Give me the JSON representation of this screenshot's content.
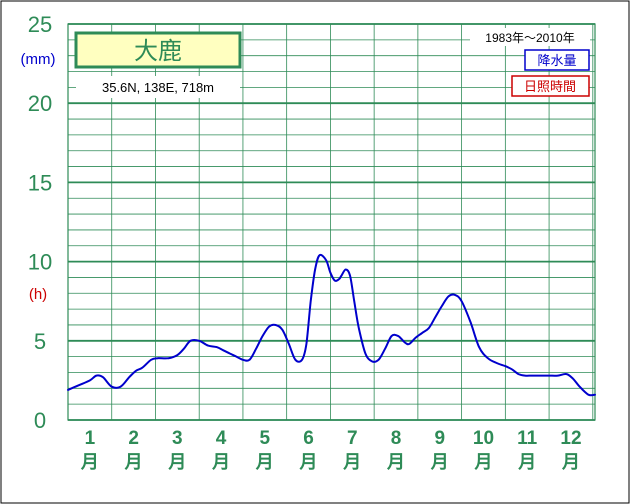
{
  "colors": {
    "frame": "#000000",
    "grid": "#2e8b57",
    "axis_text": "#2e8b57",
    "precip": "#0000cc",
    "sunshine": "#cc0000",
    "station_box_fill": "#ffffc0",
    "station_box_border": "#2e8b57"
  },
  "chart_data": {
    "type": "line",
    "station": "大鹿",
    "location": "35.6N,  138E,  718m",
    "period": "1983年～2010年",
    "legend": [
      {
        "label": "降水量",
        "color": "#0000cc"
      },
      {
        "label": "日照時間",
        "color": "#cc0000"
      }
    ],
    "y_unit_mm": "(mm)",
    "y_unit_h": "(h)",
    "ylim": [
      0,
      25
    ],
    "y_ticks": [
      {
        "value": 0,
        "label": "0"
      },
      {
        "value": 5,
        "label": "5"
      },
      {
        "value": 10,
        "label": "10"
      },
      {
        "value": 15,
        "label": "15"
      },
      {
        "value": 20,
        "label": "20"
      },
      {
        "value": 25,
        "label": "25"
      }
    ],
    "x_ticks": [
      {
        "num": "1",
        "kanji": "月"
      },
      {
        "num": "2",
        "kanji": "月"
      },
      {
        "num": "3",
        "kanji": "月"
      },
      {
        "num": "4",
        "kanji": "月"
      },
      {
        "num": "5",
        "kanji": "月"
      },
      {
        "num": "6",
        "kanji": "月"
      },
      {
        "num": "7",
        "kanji": "月"
      },
      {
        "num": "8",
        "kanji": "月"
      },
      {
        "num": "9",
        "kanji": "月"
      },
      {
        "num": "10",
        "kanji": "月"
      },
      {
        "num": "11",
        "kanji": "月"
      },
      {
        "num": "12",
        "kanji": "月"
      }
    ],
    "x_range": [
      0.5,
      12.55
    ],
    "series": [
      {
        "name": "降水量",
        "color": "#0000cc",
        "x": [
          0.5,
          0.75,
          1.0,
          1.15,
          1.3,
          1.5,
          1.7,
          1.9,
          2.05,
          2.2,
          2.4,
          2.55,
          2.8,
          3.0,
          3.15,
          3.3,
          3.5,
          3.7,
          3.9,
          4.05,
          4.2,
          4.35,
          4.5,
          4.65,
          4.8,
          4.95,
          5.1,
          5.25,
          5.4,
          5.55,
          5.7,
          5.85,
          5.95,
          6.05,
          6.15,
          6.25,
          6.4,
          6.5,
          6.6,
          6.7,
          6.75,
          6.85,
          6.95,
          7.05,
          7.15,
          7.3,
          7.45,
          7.6,
          7.75,
          7.9,
          8.05,
          8.2,
          8.3,
          8.45,
          8.6,
          8.75,
          8.9,
          9.05,
          9.2,
          9.35,
          9.5,
          9.7,
          9.9,
          10.1,
          10.3,
          10.5,
          10.65,
          10.8,
          10.95,
          11.1,
          11.3,
          11.5,
          11.7,
          11.9,
          12.05,
          12.2,
          12.4,
          12.55
        ],
        "values": [
          1.9,
          2.2,
          2.5,
          2.8,
          2.7,
          2.1,
          2.1,
          2.7,
          3.1,
          3.3,
          3.8,
          3.9,
          3.9,
          4.1,
          4.5,
          5.0,
          5.0,
          4.7,
          4.6,
          4.4,
          4.2,
          4.0,
          3.8,
          3.8,
          4.5,
          5.3,
          5.9,
          6.0,
          5.7,
          4.8,
          3.8,
          3.8,
          4.8,
          7.5,
          9.5,
          10.4,
          10.1,
          9.3,
          8.8,
          8.9,
          9.1,
          9.5,
          9.1,
          7.4,
          5.8,
          4.2,
          3.7,
          3.8,
          4.5,
          5.3,
          5.3,
          4.9,
          4.8,
          5.2,
          5.5,
          5.8,
          6.5,
          7.2,
          7.8,
          7.9,
          7.5,
          6.2,
          4.6,
          3.9,
          3.6,
          3.4,
          3.2,
          2.9,
          2.8,
          2.8,
          2.8,
          2.8,
          2.8,
          2.9,
          2.6,
          2.1,
          1.6,
          1.6
        ]
      }
    ]
  }
}
